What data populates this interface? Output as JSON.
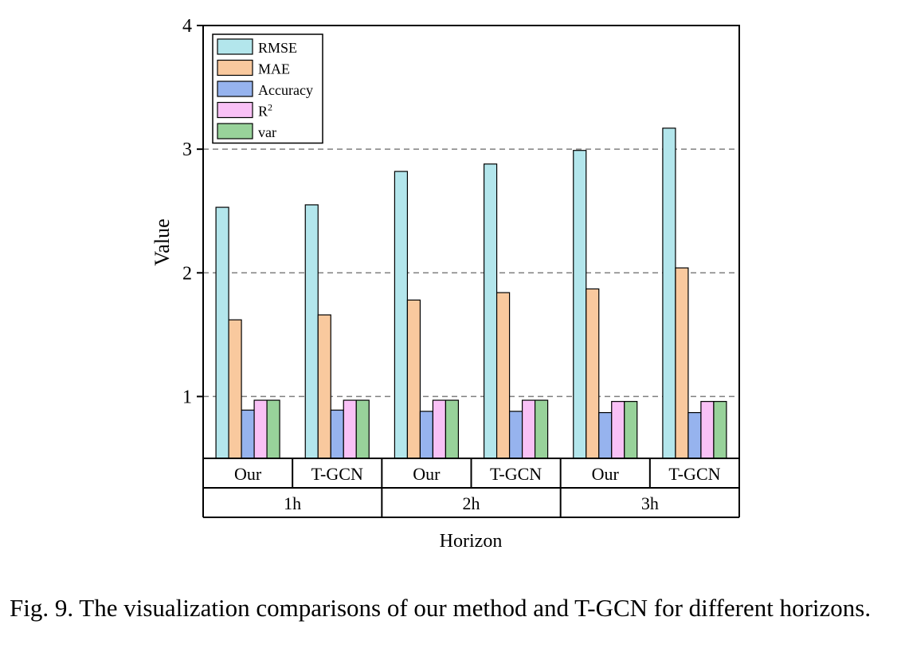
{
  "chart_data": {
    "type": "bar",
    "xlabel": "Horizon",
    "ylabel": "Value",
    "ylim": [
      0.5,
      4
    ],
    "yticks": [
      "1",
      "2",
      "3",
      "4"
    ],
    "grid": "dashed horizontal at 1, 2, 3",
    "legend_position": "top-left",
    "groups": [
      {
        "horizon": "1h",
        "methods": [
          "Our",
          "T-GCN"
        ]
      },
      {
        "horizon": "2h",
        "methods": [
          "Our",
          "T-GCN"
        ]
      },
      {
        "horizon": "3h",
        "methods": [
          "Our",
          "T-GCN"
        ]
      }
    ],
    "categories": [
      "Our",
      "T-GCN",
      "Our",
      "T-GCN",
      "Our",
      "T-GCN"
    ],
    "series": [
      {
        "name": "RMSE",
        "color": "#b3e6ec",
        "values": [
          2.53,
          2.55,
          2.82,
          2.88,
          2.99,
          3.17
        ]
      },
      {
        "name": "MAE",
        "color": "#f9c99e",
        "values": [
          1.62,
          1.66,
          1.78,
          1.84,
          1.87,
          2.04
        ]
      },
      {
        "name": "Accuracy",
        "color": "#96b3ee",
        "values": [
          0.89,
          0.89,
          0.88,
          0.88,
          0.87,
          0.87
        ]
      },
      {
        "name": "R",
        "sup": "2",
        "color": "#f9c1f6",
        "values": [
          0.97,
          0.97,
          0.97,
          0.97,
          0.96,
          0.96
        ]
      },
      {
        "name": "var",
        "color": "#98d29a",
        "values": [
          0.97,
          0.97,
          0.97,
          0.97,
          0.96,
          0.96
        ]
      }
    ]
  },
  "caption": "Fig. 9.  The visualization comparisons of our method and T-GCN for different horizons."
}
